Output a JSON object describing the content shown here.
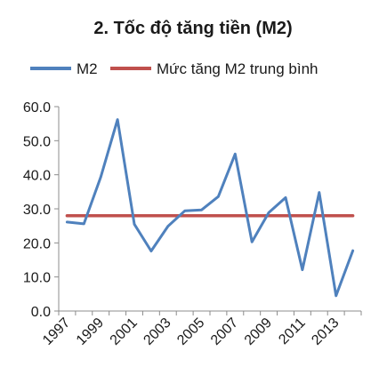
{
  "chart_data": {
    "type": "line",
    "title": "2. Tốc độ tăng tiền (M2)",
    "x": [
      1997,
      1998,
      1999,
      2000,
      2001,
      2002,
      2003,
      2004,
      2005,
      2006,
      2007,
      2008,
      2009,
      2010,
      2011,
      2012,
      2013,
      2014
    ],
    "x_tick_labels": [
      "1997",
      "1999",
      "2001",
      "2003",
      "2005",
      "2007",
      "2009",
      "2011",
      "2013"
    ],
    "y_tick_labels": [
      "0.0",
      "10.0",
      "20.0",
      "30.0",
      "40.0",
      "50.0",
      "60.0"
    ],
    "ylim": [
      0,
      60
    ],
    "series": [
      {
        "name": "M2",
        "color": "#4f81bd",
        "values": [
          26.1,
          25.6,
          39.3,
          56.2,
          25.5,
          17.6,
          24.9,
          29.4,
          29.7,
          33.6,
          46.1,
          20.3,
          28.9,
          33.3,
          12.1,
          34.8,
          4.5,
          17.7
        ]
      },
      {
        "name": "Mức tăng M2 trung bình",
        "color": "#c0504d",
        "values": [
          28.0,
          28.0,
          28.0,
          28.0,
          28.0,
          28.0,
          28.0,
          28.0,
          28.0,
          28.0,
          28.0,
          28.0,
          28.0,
          28.0,
          28.0,
          28.0,
          28.0,
          28.0
        ]
      }
    ],
    "legend_position": "top",
    "grid": false
  }
}
